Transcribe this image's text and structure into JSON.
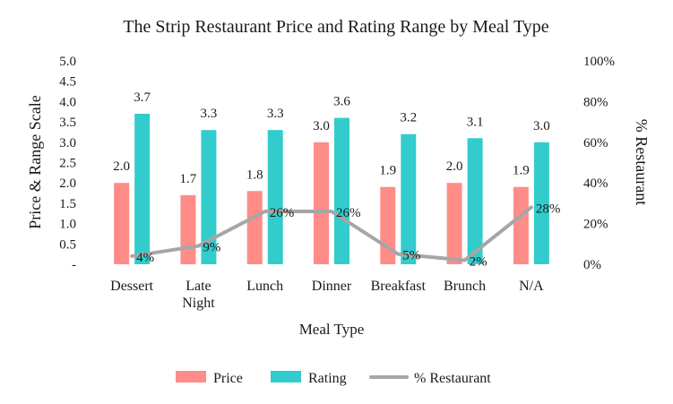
{
  "chart_data": {
    "type": "bar",
    "title": "The Strip Restaurant Price and Rating Range by Meal Type",
    "xlabel": "Meal Type",
    "ylabel": "Price & Range Scale",
    "y2label": "% Restaurant",
    "ylim": [
      0,
      5
    ],
    "y2lim": [
      0,
      1
    ],
    "y_ticks": [
      "-",
      "0.5",
      "1.0",
      "1.5",
      "2.0",
      "2.5",
      "3.0",
      "3.5",
      "4.0",
      "4.5",
      "5.0"
    ],
    "y2_ticks": [
      "0%",
      "20%",
      "40%",
      "60%",
      "80%",
      "100%"
    ],
    "categories": [
      [
        "Dessert"
      ],
      [
        "Late",
        "Night"
      ],
      [
        "Lunch"
      ],
      [
        "Dinner"
      ],
      [
        "Breakfast"
      ],
      [
        "Brunch"
      ],
      [
        "N/A"
      ]
    ],
    "series": [
      {
        "name": "Price",
        "kind": "bar",
        "axis": "left",
        "color": "#ff8c87",
        "values": [
          2.0,
          1.7,
          1.8,
          3.0,
          1.9,
          2.0,
          1.9
        ],
        "labels": [
          "2.0",
          "1.7",
          "1.8",
          "3.0",
          "1.9",
          "2.0",
          "1.9"
        ]
      },
      {
        "name": "Rating",
        "kind": "bar",
        "axis": "left",
        "color": "#33cccc",
        "values": [
          3.7,
          3.3,
          3.3,
          3.6,
          3.2,
          3.1,
          3.0
        ],
        "labels": [
          "3.7",
          "3.3",
          "3.3",
          "3.6",
          "3.2",
          "3.1",
          "3.0"
        ]
      },
      {
        "name": "% Restaurant",
        "kind": "line",
        "axis": "right",
        "color": "#a6a6a6",
        "values": [
          0.04,
          0.09,
          0.26,
          0.26,
          0.05,
          0.02,
          0.28
        ],
        "labels": [
          "4%",
          "9%",
          "26%",
          "26%",
          "5%",
          "2%",
          "28%"
        ]
      }
    ],
    "legend_position": "bottom",
    "grid": false
  }
}
